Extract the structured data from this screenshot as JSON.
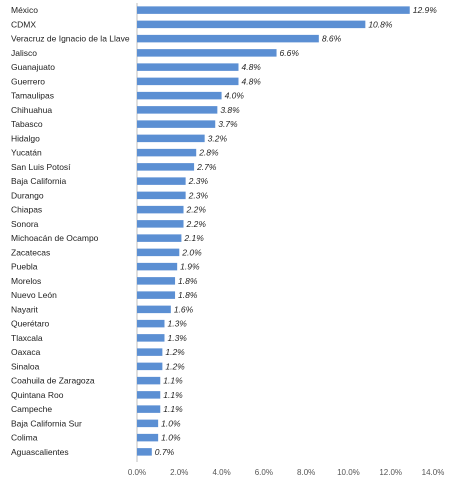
{
  "chart_data": {
    "type": "bar",
    "orientation": "horizontal",
    "categories": [
      "México",
      "CDMX",
      "Veracruz de Ignacio de la Llave",
      "Jalisco",
      "Guanajuato",
      "Guerrero",
      "Tamaulipas",
      "Chihuahua",
      "Tabasco",
      "Hidalgo",
      "Yucatán",
      "San Luis Potosí",
      "Baja California",
      "Durango",
      "Chiapas",
      "Sonora",
      "Michoacán de Ocampo",
      "Zacatecas",
      "Puebla",
      "Morelos",
      "Nuevo León",
      "Nayarit",
      "Querétaro",
      "Tlaxcala",
      "Oaxaca",
      "Sinaloa",
      "Coahuila de Zaragoza",
      "Quintana Roo",
      "Campeche",
      "Baja California Sur",
      "Colima",
      "Aguascalientes"
    ],
    "values": [
      12.9,
      10.8,
      8.6,
      6.6,
      4.8,
      4.8,
      4.0,
      3.8,
      3.7,
      3.2,
      2.8,
      2.7,
      2.3,
      2.3,
      2.2,
      2.2,
      2.1,
      2.0,
      1.9,
      1.8,
      1.8,
      1.6,
      1.3,
      1.3,
      1.2,
      1.2,
      1.1,
      1.1,
      1.1,
      1.0,
      1.0,
      0.7
    ],
    "value_labels": [
      "12.9%",
      "10.8%",
      "8.6%",
      "6.6%",
      "4.8%",
      "4.8%",
      "4.0%",
      "3.8%",
      "3.7%",
      "3.2%",
      "2.8%",
      "2.7%",
      "2.3%",
      "2.3%",
      "2.2%",
      "2.2%",
      "2.1%",
      "2.0%",
      "1.9%",
      "1.8%",
      "1.8%",
      "1.6%",
      "1.3%",
      "1.3%",
      "1.2%",
      "1.2%",
      "1.1%",
      "1.1%",
      "1.1%",
      "1.0%",
      "1.0%",
      "0.7%"
    ],
    "x_ticks": [
      "0.0%",
      "2.0%",
      "4.0%",
      "6.0%",
      "8.0%",
      "10.0%",
      "12.0%",
      "14.0%"
    ],
    "xlim": [
      0,
      14
    ],
    "grid": false,
    "legend": "none",
    "bar_color": "#5b8fd3",
    "title": "",
    "xlabel": "",
    "ylabel": ""
  }
}
